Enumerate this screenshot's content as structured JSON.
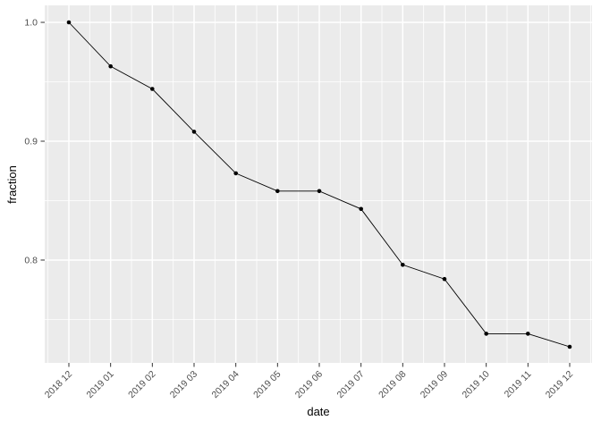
{
  "chart_data": {
    "type": "line",
    "title": "",
    "xlabel": "date",
    "ylabel": "fraction",
    "x": [
      "2018 12",
      "2019 01",
      "2019 02",
      "2019 03",
      "2019 04",
      "2019 05",
      "2019 06",
      "2019 07",
      "2019 08",
      "2019 09",
      "2019 10",
      "2019 11",
      "2019 12"
    ],
    "values": [
      1.0,
      0.963,
      0.944,
      0.908,
      0.873,
      0.858,
      0.858,
      0.843,
      0.796,
      0.784,
      0.738,
      0.738,
      0.727
    ],
    "y_ticks": [
      1.0,
      0.9,
      0.8
    ],
    "y_tick_labels": [
      "1.0",
      "0.9",
      "0.8"
    ],
    "y_minor_ticks": [
      0.95,
      0.85,
      0.75
    ],
    "ylim": [
      0.7135,
      1.0143
    ],
    "grid": true,
    "legend_position": "none",
    "x_label_angle_deg": -45,
    "colors": {
      "panel_background": "#ebebeb",
      "grid_major": "#ffffff",
      "grid_minor": "#ffffff",
      "line": "#000000",
      "point": "#000000",
      "tick_mark": "#333333",
      "tick_label": "#4d4d4d",
      "axis_title": "#000000",
      "figure_background": "#ffffff"
    }
  }
}
